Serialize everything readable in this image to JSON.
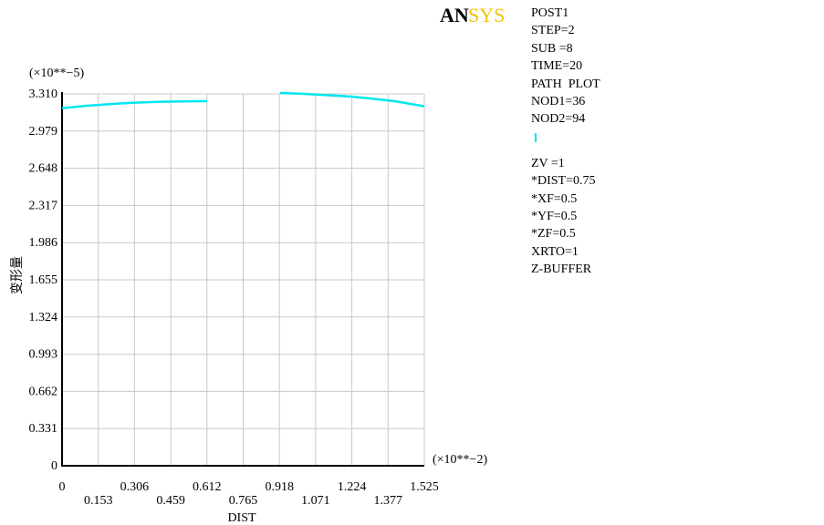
{
  "logo": {
    "text_a": "AN",
    "text_b": "SYS"
  },
  "info_panel": {
    "lines_top": [
      "POST1",
      "STEP=2",
      "SUB =8",
      "TIME=20",
      "PATH  PLOT",
      "NOD1=36",
      "NOD2=94"
    ],
    "lines_bottom": [
      "ZV =1",
      "*DIST=0.75",
      "*XF=0.5",
      "*YF=0.5",
      "*ZF=0.5",
      "XRTO=1",
      "Z-BUFFER"
    ]
  },
  "chart_data": {
    "type": "line",
    "xlabel": "DIST",
    "ylabel": "变形量",
    "x_multiplier": "(×10**−2)",
    "y_multiplier": "(×10**−5)",
    "xlim": [
      0,
      1.525
    ],
    "ylim": [
      0,
      3.31
    ],
    "x_ticks": [
      "0",
      "0.153",
      "0.306",
      "0.459",
      "0.612",
      "0.765",
      "0.918",
      "1.071",
      "1.224",
      "1.377",
      "1.525"
    ],
    "y_ticks": [
      "0",
      "0.331",
      "0.662",
      "0.993",
      "1.324",
      "1.655",
      "1.986",
      "2.317",
      "2.648",
      "2.979",
      "3.310"
    ],
    "grid": true,
    "line_color": "#00e6f0",
    "series": [
      {
        "x": [
          0,
          0.1,
          0.2,
          0.3,
          0.4,
          0.5,
          0.612
        ],
        "y": [
          3.183,
          3.204,
          3.219,
          3.231,
          3.239,
          3.243,
          3.245
        ]
      },
      {
        "x": [
          0.918,
          1.0,
          1.1,
          1.224,
          1.3,
          1.4,
          1.525
        ],
        "y": [
          3.318,
          3.312,
          3.301,
          3.285,
          3.269,
          3.245,
          3.2
        ]
      }
    ]
  }
}
